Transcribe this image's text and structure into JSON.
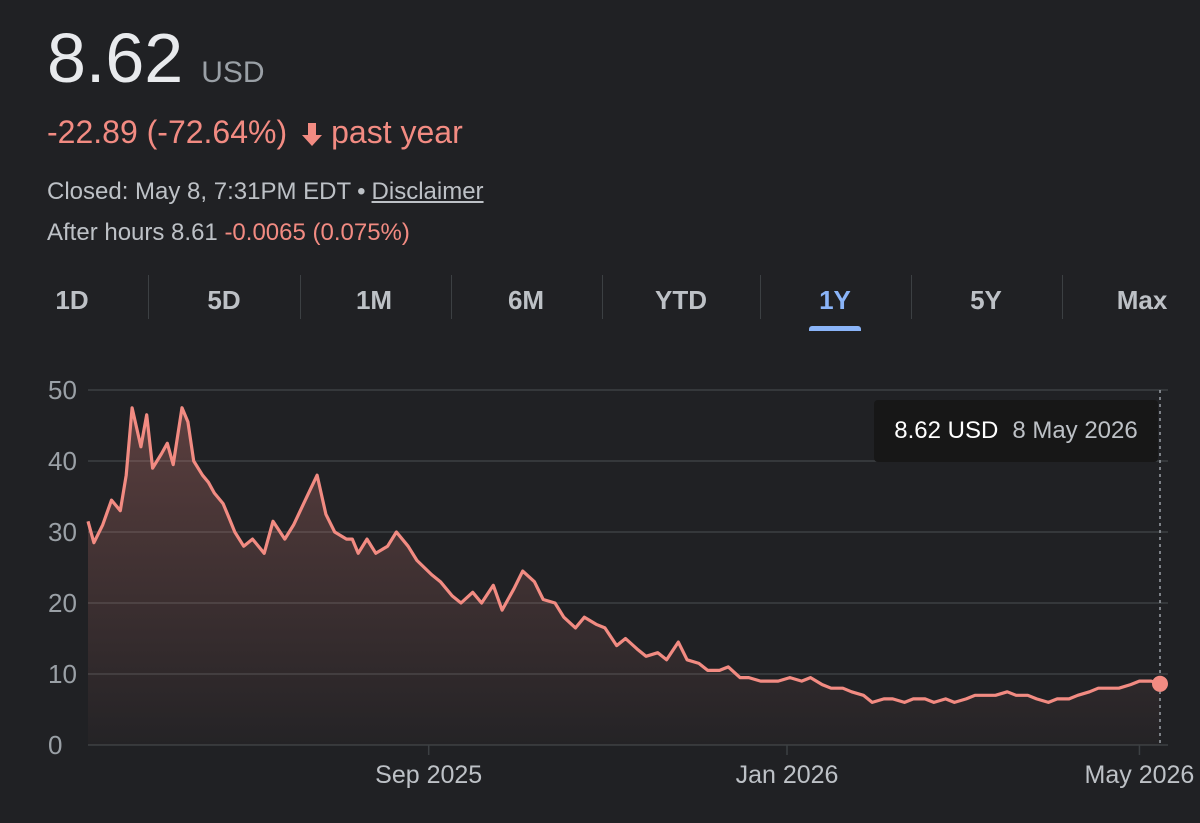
{
  "quote": {
    "price": "8.62",
    "currency": "USD",
    "change_text": "-22.89 (-72.64%)",
    "period_text": "past year",
    "closed_text": "Closed: May 8, 7:31PM EDT",
    "disclaimer_label": "Disclaimer",
    "after_hours_label": "After hours 8.61",
    "after_hours_change": "-0.0065 (0.075%)"
  },
  "ranges": [
    "1D",
    "5D",
    "1M",
    "6M",
    "YTD",
    "1Y",
    "5Y",
    "Max"
  ],
  "active_range": "1Y",
  "tooltip": {
    "price": "8.62 USD",
    "date": "8 May 2026"
  },
  "colors": {
    "background": "#202124",
    "line": "#f28b82",
    "grid": "#3c4043",
    "active_tab": "#8ab4f8",
    "negative": "#f28b82"
  },
  "icons": {
    "change_direction": "arrow-down-icon"
  },
  "chart_data": {
    "type": "area",
    "title": "",
    "xlabel": "",
    "ylabel": "",
    "ylim": [
      0,
      50
    ],
    "yticks": [
      0,
      10,
      20,
      30,
      40,
      50
    ],
    "xticks": [
      {
        "label": "Sep 2025",
        "date": "2025-09-01"
      },
      {
        "label": "Jan 2026",
        "date": "2026-01-01"
      },
      {
        "label": "May 2026",
        "date": "2026-05-01"
      }
    ],
    "grid": true,
    "x": [
      "2025-05-08",
      "2025-05-10",
      "2025-05-13",
      "2025-05-16",
      "2025-05-19",
      "2025-05-21",
      "2025-05-23",
      "2025-05-26",
      "2025-05-28",
      "2025-05-30",
      "2025-06-02",
      "2025-06-04",
      "2025-06-06",
      "2025-06-09",
      "2025-06-11",
      "2025-06-13",
      "2025-06-16",
      "2025-06-18",
      "2025-06-20",
      "2025-06-23",
      "2025-06-25",
      "2025-06-27",
      "2025-06-30",
      "2025-07-03",
      "2025-07-07",
      "2025-07-10",
      "2025-07-14",
      "2025-07-17",
      "2025-07-21",
      "2025-07-25",
      "2025-07-28",
      "2025-07-31",
      "2025-08-04",
      "2025-08-06",
      "2025-08-08",
      "2025-08-11",
      "2025-08-14",
      "2025-08-18",
      "2025-08-21",
      "2025-08-25",
      "2025-08-28",
      "2025-09-02",
      "2025-09-05",
      "2025-09-09",
      "2025-09-12",
      "2025-09-16",
      "2025-09-19",
      "2025-09-23",
      "2025-09-26",
      "2025-09-30",
      "2025-10-03",
      "2025-10-07",
      "2025-10-10",
      "2025-10-14",
      "2025-10-17",
      "2025-10-21",
      "2025-10-24",
      "2025-10-28",
      "2025-10-31",
      "2025-11-04",
      "2025-11-07",
      "2025-11-11",
      "2025-11-14",
      "2025-11-18",
      "2025-11-21",
      "2025-11-25",
      "2025-11-28",
      "2025-12-02",
      "2025-12-05",
      "2025-12-09",
      "2025-12-12",
      "2025-12-16",
      "2025-12-19",
      "2025-12-23",
      "2025-12-29",
      "2026-01-02",
      "2026-01-06",
      "2026-01-09",
      "2026-01-13",
      "2026-01-16",
      "2026-01-20",
      "2026-01-23",
      "2026-01-27",
      "2026-01-30",
      "2026-02-03",
      "2026-02-06",
      "2026-02-10",
      "2026-02-13",
      "2026-02-17",
      "2026-02-20",
      "2026-02-24",
      "2026-02-27",
      "2026-03-03",
      "2026-03-06",
      "2026-03-10",
      "2026-03-13",
      "2026-03-17",
      "2026-03-20",
      "2026-03-24",
      "2026-03-27",
      "2026-03-31",
      "2026-04-03",
      "2026-04-07",
      "2026-04-10",
      "2026-04-14",
      "2026-04-17",
      "2026-04-21",
      "2026-04-24",
      "2026-04-28",
      "2026-05-01",
      "2026-05-05",
      "2026-05-08"
    ],
    "series": [
      {
        "values": [
          31.5,
          28.5,
          31,
          34.5,
          33,
          38,
          47.5,
          42,
          46.5,
          39,
          41,
          42.5,
          39.5,
          47.5,
          45.5,
          40,
          38,
          37,
          35.5,
          34,
          32,
          30,
          28,
          29,
          27,
          31.5,
          29,
          31,
          34.5,
          38,
          32.5,
          30,
          29,
          29,
          27,
          29,
          27,
          28,
          30,
          28,
          26,
          24,
          23,
          21,
          20,
          21.5,
          20,
          22.5,
          19,
          22,
          24.5,
          23,
          20.5,
          20,
          18,
          16.5,
          18,
          17,
          16.5,
          14,
          15,
          13.5,
          12.5,
          13,
          12,
          14.5,
          12,
          11.5,
          10.5,
          10.5,
          11,
          9.5,
          9.5,
          9,
          9,
          9.5,
          9,
          9.5,
          8.5,
          8,
          8,
          7.5,
          7,
          6,
          6.5,
          6.5,
          6,
          6.5,
          6.5,
          6,
          6.5,
          6,
          6.5,
          7,
          7,
          7,
          7.5,
          7,
          7,
          6.5,
          6,
          6.5,
          6.5,
          7,
          7.5,
          8,
          8,
          8,
          8.5,
          9,
          9,
          8.62
        ]
      }
    ]
  }
}
